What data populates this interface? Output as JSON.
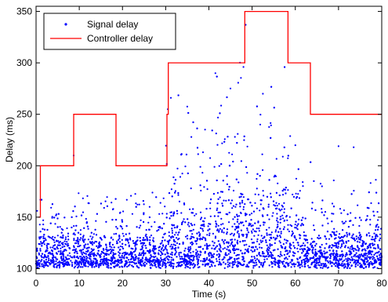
{
  "chart_data": {
    "type": "line",
    "title": "",
    "xlabel": "Time (s)",
    "ylabel": "Delay (ms)",
    "xlim": [
      0,
      80
    ],
    "ylim": [
      95,
      355
    ],
    "xticks": [
      0,
      10,
      20,
      30,
      40,
      50,
      60,
      70,
      80
    ],
    "xtick_labels": [
      "0",
      "10",
      "20",
      "30",
      "40",
      "50",
      "60",
      "70",
      "80"
    ],
    "yticks": [
      100,
      150,
      200,
      250,
      300,
      350
    ],
    "ytick_labels": [
      "100",
      "150",
      "200",
      "250",
      "300",
      "350"
    ],
    "grid": false,
    "legend": {
      "placement": "top-left",
      "entries": [
        "Signal delay",
        "Controller delay"
      ]
    },
    "series": [
      {
        "name": "Signal delay",
        "type": "scatter",
        "color": "#0000ff",
        "points_shown": "dense random scatter of thousands of samples, mostly 100-150 ms, with spread up to about 290 ms between t=30 and t=60 s",
        "notable_points": [
          [
            1,
            167
          ],
          [
            8.7,
            210
          ],
          [
            30.5,
            255
          ],
          [
            31.2,
            266
          ],
          [
            41.5,
            290
          ],
          [
            48,
            296
          ],
          [
            48.5,
            337
          ],
          [
            52.5,
            270
          ],
          [
            60,
            220
          ],
          [
            70,
            219
          ],
          [
            73.5,
            218
          ]
        ]
      },
      {
        "name": "Controller delay",
        "type": "step",
        "color": "#ff0000",
        "x": [
          0.5,
          1,
          1,
          8.7,
          8.7,
          18.5,
          18.5,
          30.3,
          30.3,
          30.6,
          30.6,
          48.3,
          48.3,
          58.3,
          58.3,
          63.5,
          63.5,
          80
        ],
        "y": [
          150,
          150,
          200,
          200,
          250,
          250,
          200,
          200,
          250,
          250,
          300,
          300,
          350,
          350,
          300,
          300,
          250,
          250
        ]
      }
    ]
  }
}
